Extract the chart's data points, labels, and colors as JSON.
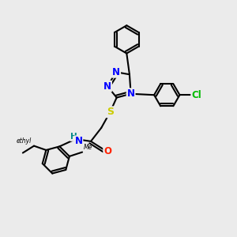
{
  "bg_color": "#ebebeb",
  "line_color": "#000000",
  "bond_lw": 1.5,
  "atom_colors": {
    "N": "#0000ff",
    "S": "#cccc00",
    "O": "#ff2200",
    "Cl": "#00bb00",
    "H": "#008888",
    "C": "#000000"
  },
  "fs": 8.5
}
